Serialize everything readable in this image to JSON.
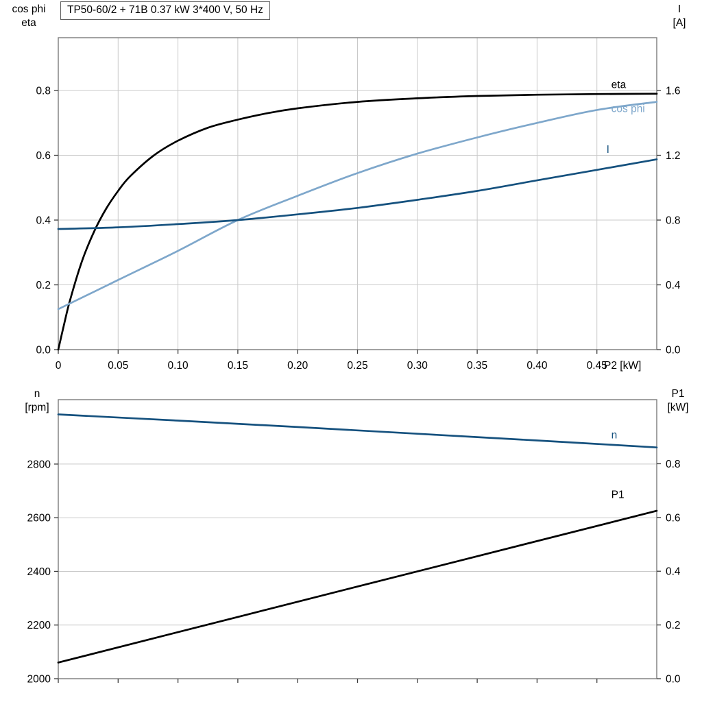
{
  "title": "TP50-60/2 + 71B   0.37 kW   3*400 V, 50 Hz",
  "corner_labels": {
    "top_left": "cos phi\neta",
    "top_right": "I\n[A]",
    "bottom_left": "n\n[rpm]",
    "bottom_right": "P1\n[kW]"
  },
  "colors": {
    "black": "#000000",
    "light_blue": "#7ea7cb",
    "dark_blue": "#15517e",
    "grid": "#c9c9c9",
    "frame": "#7a7a7a",
    "tick": "#3a3a3a",
    "text": "#000000"
  },
  "chart_data": [
    {
      "type": "line",
      "title": "TP50-60/2 + 71B   0.37 kW   3*400 V, 50 Hz",
      "x_label": "P2 [kW]",
      "xlim": [
        0,
        0.5
      ],
      "x_ticks": [
        0,
        0.05,
        0.1,
        0.15,
        0.2,
        0.25,
        0.3,
        0.35,
        0.4,
        0.45
      ],
      "x_tick_labels": [
        "0",
        "0.05",
        "0.10",
        "0.15",
        "0.20",
        "0.25",
        "0.30",
        "0.35",
        "0.40",
        "0.45"
      ],
      "x_grid": true,
      "left_axis": {
        "label": "cos phi / eta",
        "lim": [
          0,
          0.963
        ],
        "ticks": [
          0,
          0.2,
          0.4,
          0.6,
          0.8
        ],
        "tick_labels": [
          "0.0",
          "0.2",
          "0.4",
          "0.6",
          "0.8"
        ],
        "grid": true
      },
      "right_axis": {
        "label": "I [A]",
        "lim": [
          0,
          1.926
        ],
        "ticks": [
          0,
          0.4,
          0.8,
          1.2,
          1.6
        ],
        "tick_labels": [
          "0.0",
          "0.4",
          "0.8",
          "1.2",
          "1.6"
        ]
      },
      "series": [
        {
          "name": "eta",
          "axis": "left",
          "color": "black",
          "label": {
            "text": "eta",
            "x": 0.462,
            "y": 0.818
          },
          "x": [
            0,
            0.005,
            0.01,
            0.02,
            0.03,
            0.04,
            0.05,
            0.06,
            0.08,
            0.1,
            0.125,
            0.15,
            0.175,
            0.2,
            0.25,
            0.3,
            0.35,
            0.4,
            0.45,
            0.5
          ],
          "y": [
            0,
            0.08,
            0.155,
            0.275,
            0.365,
            0.435,
            0.49,
            0.535,
            0.6,
            0.645,
            0.685,
            0.71,
            0.73,
            0.745,
            0.765,
            0.776,
            0.783,
            0.787,
            0.789,
            0.79
          ]
        },
        {
          "name": "cos phi",
          "axis": "left",
          "color": "light_blue",
          "label": {
            "text": "cos phi",
            "x": 0.462,
            "y": 0.744
          },
          "x": [
            0,
            0.05,
            0.1,
            0.15,
            0.2,
            0.25,
            0.3,
            0.35,
            0.4,
            0.45,
            0.5
          ],
          "y": [
            0.125,
            0.215,
            0.305,
            0.4,
            0.475,
            0.545,
            0.605,
            0.655,
            0.7,
            0.74,
            0.765
          ]
        },
        {
          "name": "I",
          "axis": "right",
          "color": "dark_blue",
          "label": {
            "text": "I",
            "x": 0.458,
            "y": 1.235
          },
          "x": [
            0,
            0.05,
            0.1,
            0.15,
            0.2,
            0.25,
            0.3,
            0.35,
            0.4,
            0.45,
            0.5
          ],
          "y": [
            0.745,
            0.755,
            0.775,
            0.8,
            0.835,
            0.875,
            0.925,
            0.98,
            1.045,
            1.11,
            1.175
          ]
        }
      ]
    },
    {
      "type": "line",
      "title": "",
      "x_label": "",
      "xlim": [
        0,
        0.5
      ],
      "x_ticks": [
        0,
        0.05,
        0.1,
        0.15,
        0.2,
        0.25,
        0.3,
        0.35,
        0.4,
        0.45
      ],
      "x_tick_labels": [],
      "x_grid": false,
      "left_axis": {
        "label": "n [rpm]",
        "lim": [
          2000,
          3040
        ],
        "ticks": [
          2000,
          2200,
          2400,
          2600,
          2800
        ],
        "tick_labels": [
          "2000",
          "2200",
          "2400",
          "2600",
          "2800"
        ],
        "grid": true
      },
      "right_axis": {
        "label": "P1 [kW]",
        "lim": [
          0,
          1.0385
        ],
        "ticks": [
          0,
          0.2,
          0.4,
          0.6,
          0.8
        ],
        "tick_labels": [
          "0.0",
          "0.2",
          "0.4",
          "0.6",
          "0.8"
        ]
      },
      "series": [
        {
          "name": "n",
          "axis": "left",
          "color": "dark_blue",
          "label": {
            "text": "n",
            "x": 0.462,
            "y": 2908
          },
          "x": [
            0,
            0.1,
            0.2,
            0.3,
            0.4,
            0.5
          ],
          "y": [
            2985,
            2962,
            2938,
            2913,
            2888,
            2862
          ]
        },
        {
          "name": "P1",
          "axis": "right",
          "color": "black",
          "label": {
            "text": "P1",
            "x": 0.462,
            "y": 0.685
          },
          "x": [
            0,
            0.25,
            0.5
          ],
          "y": [
            0.06,
            0.343,
            0.625
          ]
        }
      ]
    }
  ]
}
